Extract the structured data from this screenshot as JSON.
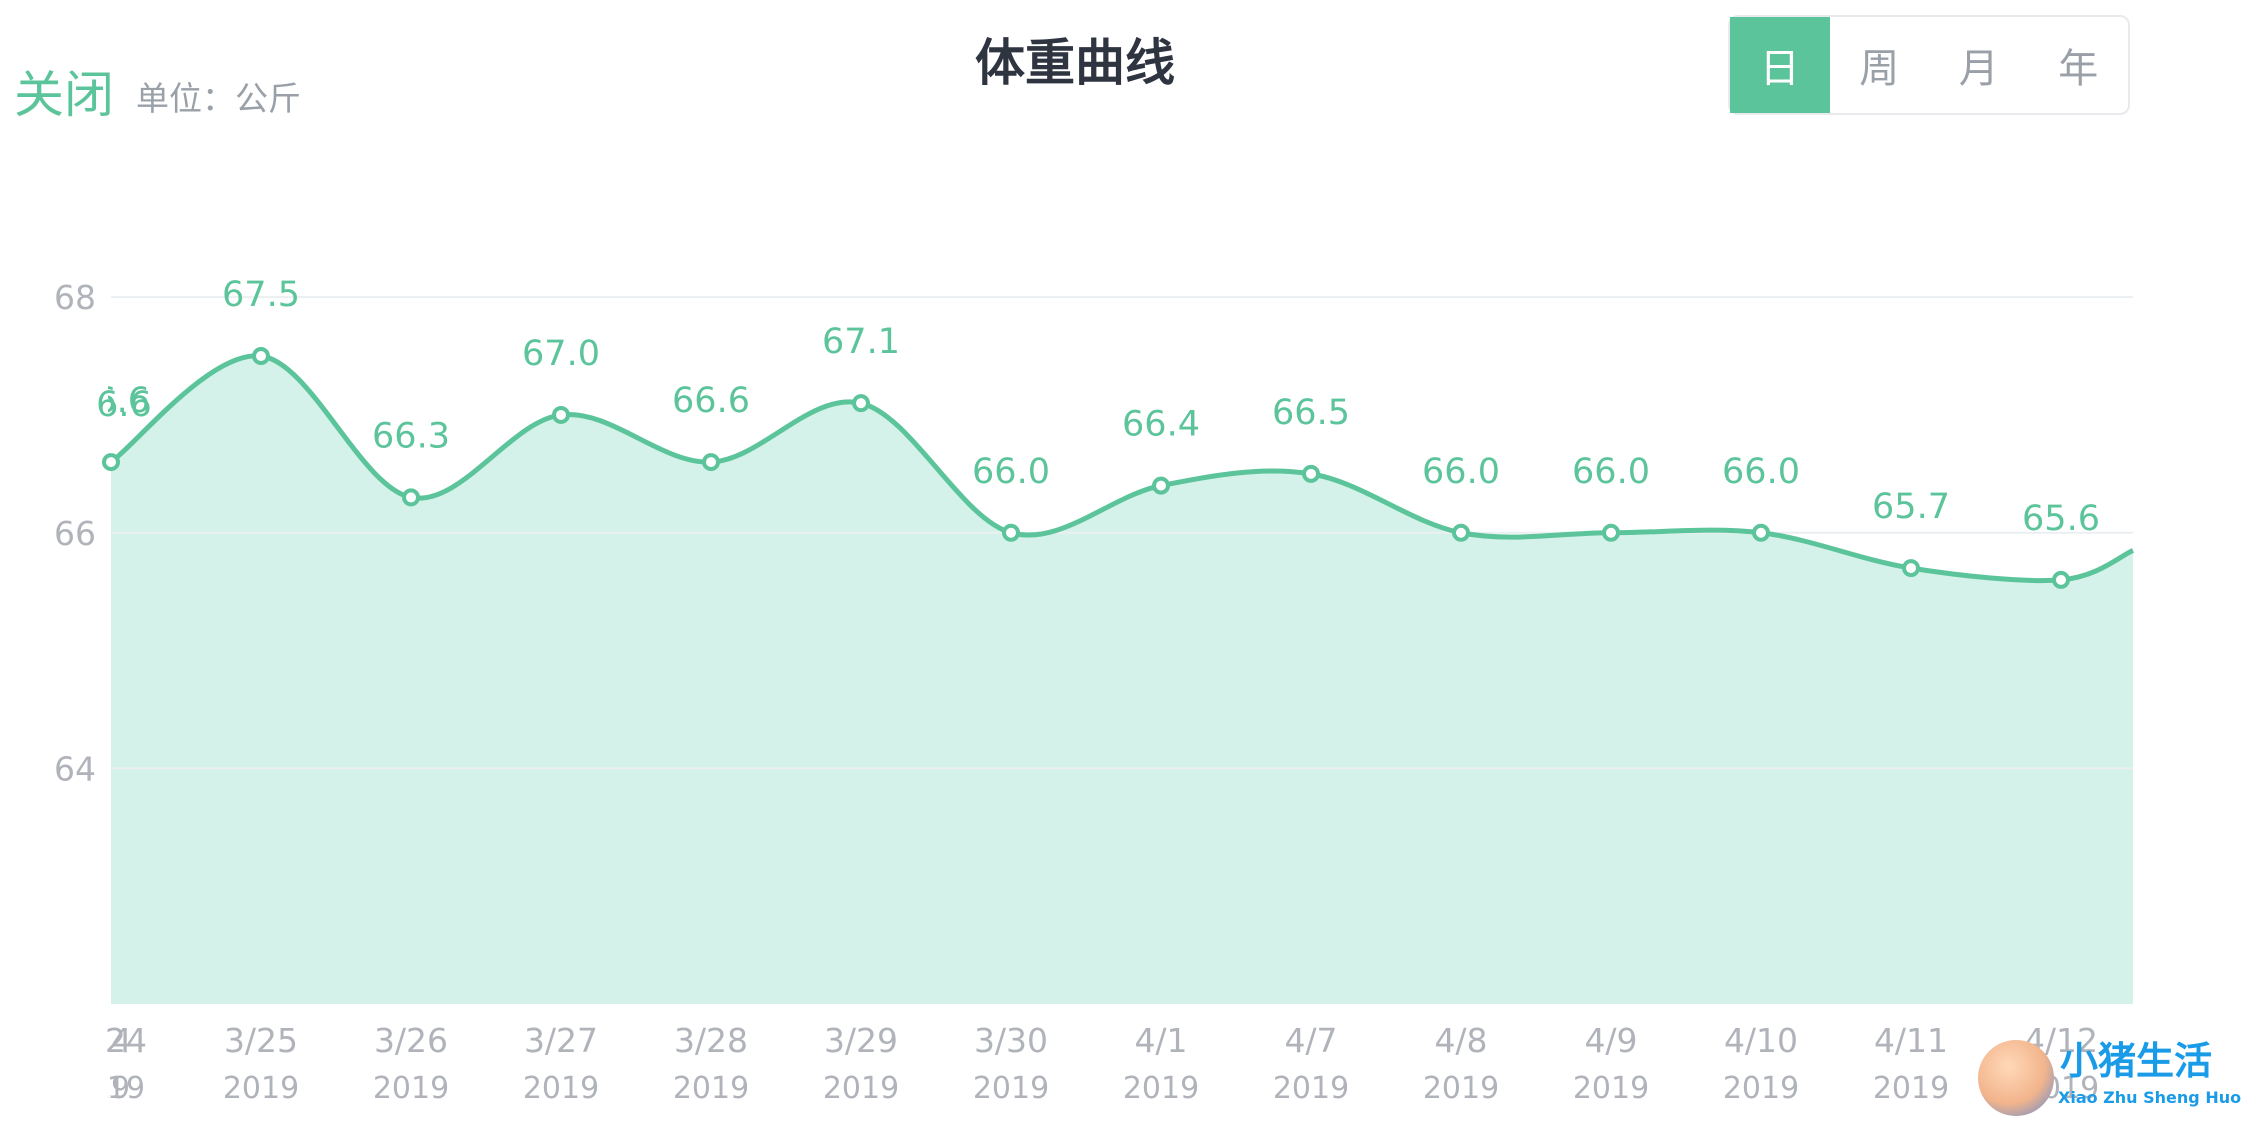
{
  "header": {
    "close_label": "关闭",
    "unit_label": "单位：公斤",
    "title": "体重曲线"
  },
  "period_tabs": [
    {
      "label": "日",
      "active": true
    },
    {
      "label": "周",
      "active": false
    },
    {
      "label": "月",
      "active": false
    },
    {
      "label": "年",
      "active": false
    }
  ],
  "colors": {
    "accent": "#5cc49b",
    "area_fill": "#d4f2e9",
    "axis_text": "#b0b4ba",
    "title": "#2e3440"
  },
  "watermark": {
    "title": "小猪生活",
    "subtitle": "Xiao Zhu Sheng Huo"
  },
  "chart_data": {
    "type": "area",
    "title": "体重曲线",
    "unit": "公斤",
    "ylim": [
      62,
      68.4
    ],
    "y_ticks": [
      64,
      66,
      68
    ],
    "y_tick_labels": [
      "64",
      "66",
      "68"
    ],
    "grid": true,
    "x": [
      "3/24",
      "3/25",
      "3/26",
      "3/27",
      "3/28",
      "3/29",
      "3/30",
      "4/1",
      "4/7",
      "4/8",
      "4/9",
      "4/10",
      "4/11",
      "4/12"
    ],
    "x_year": [
      "2019",
      "2019",
      "2019",
      "2019",
      "2019",
      "2019",
      "2019",
      "2019",
      "2019",
      "2019",
      "2019",
      "2019",
      "2019",
      "2019"
    ],
    "x_tick_labels": [
      "24",
      "3/25",
      "3/26",
      "3/27",
      "3/28",
      "3/29",
      "3/30",
      "4/1",
      "4/7",
      "4/8",
      "4/9",
      "4/10",
      "4/11",
      "4/12"
    ],
    "x_year_labels": [
      "19",
      "2019",
      "2019",
      "2019",
      "2019",
      "2019",
      "2019",
      "2019",
      "2019",
      "2019",
      "2019",
      "2019",
      "2019",
      "2019"
    ],
    "series": [
      {
        "values": [
          66.6,
          67.5,
          66.3,
          67.0,
          66.6,
          67.1,
          66.0,
          66.4,
          66.5,
          66.0,
          66.0,
          66.0,
          65.7,
          65.6
        ],
        "labels": [
          "66.6",
          "67.5",
          "66.3",
          "67.0",
          "66.6",
          "67.1",
          "66.0",
          "66.4",
          "66.5",
          "66.0",
          "66.0",
          "66.0",
          "65.7",
          "65.6"
        ]
      }
    ],
    "trailing_value": 65.85
  }
}
